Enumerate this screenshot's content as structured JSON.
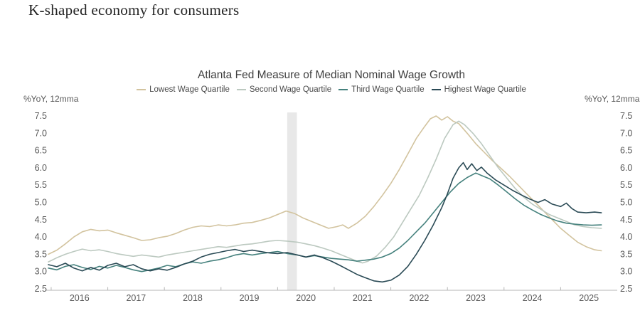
{
  "page": {
    "title": "K-shaped economy for consumers"
  },
  "chart_data": {
    "type": "line",
    "title": "Atlanta Fed Measure of Median Nominal Wage Growth",
    "y_axis_unit": "%YoY, 12mma",
    "xlabel": "",
    "ylabel": "%YoY, 12mma",
    "ylim": [
      2.5,
      7.5
    ],
    "xlim": [
      2015.9,
      2026.0
    ],
    "y_ticks": [
      2.5,
      3.0,
      3.5,
      4.0,
      4.5,
      5.0,
      5.5,
      6.0,
      6.5,
      7.0,
      7.5
    ],
    "x_tick_years": [
      2016,
      2017,
      2018,
      2019,
      2020,
      2021,
      2022,
      2023,
      2024,
      2025
    ],
    "grid": false,
    "legend_position": "top",
    "recession_band": {
      "name": "covid-recession-shading",
      "x_from": 2020.17,
      "x_to": 2020.34,
      "color": "#e8e8e8"
    },
    "axis_color": "#b5b5b5",
    "tick_label_color": "#595959",
    "series": [
      {
        "name": "Lowest Wage Quartile",
        "color": "#d2c39e",
        "points": [
          [
            2015.95,
            3.5
          ],
          [
            2016.1,
            3.62
          ],
          [
            2016.25,
            3.8
          ],
          [
            2016.4,
            4.0
          ],
          [
            2016.55,
            4.15
          ],
          [
            2016.7,
            4.22
          ],
          [
            2016.85,
            4.18
          ],
          [
            2017.0,
            4.2
          ],
          [
            2017.15,
            4.12
          ],
          [
            2017.3,
            4.05
          ],
          [
            2017.45,
            3.98
          ],
          [
            2017.6,
            3.9
          ],
          [
            2017.75,
            3.92
          ],
          [
            2017.9,
            3.98
          ],
          [
            2018.05,
            4.02
          ],
          [
            2018.2,
            4.1
          ],
          [
            2018.35,
            4.2
          ],
          [
            2018.5,
            4.28
          ],
          [
            2018.65,
            4.32
          ],
          [
            2018.8,
            4.3
          ],
          [
            2018.95,
            4.35
          ],
          [
            2019.1,
            4.32
          ],
          [
            2019.25,
            4.35
          ],
          [
            2019.4,
            4.4
          ],
          [
            2019.55,
            4.42
          ],
          [
            2019.7,
            4.48
          ],
          [
            2019.85,
            4.55
          ],
          [
            2020.0,
            4.65
          ],
          [
            2020.15,
            4.75
          ],
          [
            2020.3,
            4.68
          ],
          [
            2020.45,
            4.55
          ],
          [
            2020.6,
            4.45
          ],
          [
            2020.75,
            4.35
          ],
          [
            2020.9,
            4.25
          ],
          [
            2021.05,
            4.3
          ],
          [
            2021.15,
            4.35
          ],
          [
            2021.25,
            4.25
          ],
          [
            2021.4,
            4.4
          ],
          [
            2021.55,
            4.6
          ],
          [
            2021.7,
            4.88
          ],
          [
            2021.85,
            5.2
          ],
          [
            2022.0,
            5.55
          ],
          [
            2022.15,
            5.95
          ],
          [
            2022.3,
            6.4
          ],
          [
            2022.45,
            6.85
          ],
          [
            2022.6,
            7.2
          ],
          [
            2022.7,
            7.42
          ],
          [
            2022.8,
            7.5
          ],
          [
            2022.9,
            7.38
          ],
          [
            2023.0,
            7.48
          ],
          [
            2023.1,
            7.35
          ],
          [
            2023.2,
            7.28
          ],
          [
            2023.35,
            7.0
          ],
          [
            2023.5,
            6.7
          ],
          [
            2023.65,
            6.45
          ],
          [
            2023.8,
            6.2
          ],
          [
            2023.95,
            5.98
          ],
          [
            2024.1,
            5.75
          ],
          [
            2024.25,
            5.5
          ],
          [
            2024.4,
            5.25
          ],
          [
            2024.55,
            5.0
          ],
          [
            2024.7,
            4.75
          ],
          [
            2024.85,
            4.5
          ],
          [
            2025.0,
            4.25
          ],
          [
            2025.15,
            4.05
          ],
          [
            2025.3,
            3.85
          ],
          [
            2025.45,
            3.72
          ],
          [
            2025.6,
            3.63
          ],
          [
            2025.72,
            3.6
          ]
        ]
      },
      {
        "name": "Second Wage Quartile",
        "color": "#bcc9c0",
        "points": [
          [
            2015.95,
            3.28
          ],
          [
            2016.1,
            3.4
          ],
          [
            2016.25,
            3.5
          ],
          [
            2016.4,
            3.58
          ],
          [
            2016.55,
            3.65
          ],
          [
            2016.7,
            3.6
          ],
          [
            2016.85,
            3.63
          ],
          [
            2017.0,
            3.58
          ],
          [
            2017.15,
            3.52
          ],
          [
            2017.3,
            3.48
          ],
          [
            2017.45,
            3.44
          ],
          [
            2017.6,
            3.48
          ],
          [
            2017.75,
            3.45
          ],
          [
            2017.9,
            3.42
          ],
          [
            2018.05,
            3.48
          ],
          [
            2018.2,
            3.52
          ],
          [
            2018.35,
            3.56
          ],
          [
            2018.5,
            3.6
          ],
          [
            2018.65,
            3.64
          ],
          [
            2018.8,
            3.68
          ],
          [
            2018.95,
            3.72
          ],
          [
            2019.1,
            3.7
          ],
          [
            2019.25,
            3.74
          ],
          [
            2019.4,
            3.78
          ],
          [
            2019.55,
            3.8
          ],
          [
            2019.7,
            3.84
          ],
          [
            2019.85,
            3.88
          ],
          [
            2020.0,
            3.9
          ],
          [
            2020.17,
            3.88
          ],
          [
            2020.35,
            3.85
          ],
          [
            2020.5,
            3.8
          ],
          [
            2020.65,
            3.75
          ],
          [
            2020.8,
            3.68
          ],
          [
            2020.95,
            3.6
          ],
          [
            2021.1,
            3.5
          ],
          [
            2021.25,
            3.4
          ],
          [
            2021.4,
            3.3
          ],
          [
            2021.5,
            3.25
          ],
          [
            2021.6,
            3.3
          ],
          [
            2021.75,
            3.45
          ],
          [
            2021.9,
            3.7
          ],
          [
            2022.05,
            4.0
          ],
          [
            2022.2,
            4.4
          ],
          [
            2022.35,
            4.8
          ],
          [
            2022.5,
            5.2
          ],
          [
            2022.65,
            5.7
          ],
          [
            2022.8,
            6.25
          ],
          [
            2022.95,
            6.85
          ],
          [
            2023.1,
            7.25
          ],
          [
            2023.2,
            7.35
          ],
          [
            2023.3,
            7.25
          ],
          [
            2023.45,
            7.0
          ],
          [
            2023.6,
            6.7
          ],
          [
            2023.75,
            6.35
          ],
          [
            2023.9,
            6.0
          ],
          [
            2024.05,
            5.7
          ],
          [
            2024.2,
            5.4
          ],
          [
            2024.35,
            5.15
          ],
          [
            2024.5,
            4.95
          ],
          [
            2024.65,
            4.8
          ],
          [
            2024.8,
            4.65
          ],
          [
            2024.95,
            4.55
          ],
          [
            2025.1,
            4.45
          ],
          [
            2025.25,
            4.35
          ],
          [
            2025.4,
            4.3
          ],
          [
            2025.55,
            4.27
          ],
          [
            2025.72,
            4.25
          ]
        ]
      },
      {
        "name": "Third Wage Quartile",
        "color": "#45817d",
        "points": [
          [
            2015.95,
            3.1
          ],
          [
            2016.1,
            3.05
          ],
          [
            2016.25,
            3.15
          ],
          [
            2016.4,
            3.2
          ],
          [
            2016.55,
            3.12
          ],
          [
            2016.7,
            3.06
          ],
          [
            2016.85,
            3.15
          ],
          [
            2017.0,
            3.1
          ],
          [
            2017.15,
            3.18
          ],
          [
            2017.3,
            3.12
          ],
          [
            2017.45,
            3.05
          ],
          [
            2017.6,
            3.0
          ],
          [
            2017.75,
            3.05
          ],
          [
            2017.9,
            3.1
          ],
          [
            2018.05,
            3.18
          ],
          [
            2018.2,
            3.14
          ],
          [
            2018.35,
            3.22
          ],
          [
            2018.5,
            3.28
          ],
          [
            2018.65,
            3.24
          ],
          [
            2018.8,
            3.3
          ],
          [
            2018.95,
            3.34
          ],
          [
            2019.1,
            3.4
          ],
          [
            2019.25,
            3.48
          ],
          [
            2019.4,
            3.52
          ],
          [
            2019.55,
            3.48
          ],
          [
            2019.7,
            3.52
          ],
          [
            2019.85,
            3.55
          ],
          [
            2020.0,
            3.58
          ],
          [
            2020.17,
            3.52
          ],
          [
            2020.35,
            3.48
          ],
          [
            2020.5,
            3.42
          ],
          [
            2020.65,
            3.46
          ],
          [
            2020.8,
            3.42
          ],
          [
            2020.95,
            3.38
          ],
          [
            2021.1,
            3.36
          ],
          [
            2021.25,
            3.34
          ],
          [
            2021.4,
            3.3
          ],
          [
            2021.55,
            3.33
          ],
          [
            2021.7,
            3.36
          ],
          [
            2021.85,
            3.42
          ],
          [
            2022.0,
            3.52
          ],
          [
            2022.15,
            3.68
          ],
          [
            2022.3,
            3.9
          ],
          [
            2022.45,
            4.15
          ],
          [
            2022.6,
            4.4
          ],
          [
            2022.75,
            4.7
          ],
          [
            2022.9,
            5.0
          ],
          [
            2023.05,
            5.3
          ],
          [
            2023.2,
            5.55
          ],
          [
            2023.35,
            5.72
          ],
          [
            2023.5,
            5.85
          ],
          [
            2023.6,
            5.78
          ],
          [
            2023.75,
            5.68
          ],
          [
            2023.9,
            5.5
          ],
          [
            2024.05,
            5.3
          ],
          [
            2024.2,
            5.1
          ],
          [
            2024.35,
            4.92
          ],
          [
            2024.5,
            4.78
          ],
          [
            2024.65,
            4.65
          ],
          [
            2024.8,
            4.55
          ],
          [
            2024.95,
            4.46
          ],
          [
            2025.1,
            4.4
          ],
          [
            2025.25,
            4.37
          ],
          [
            2025.4,
            4.35
          ],
          [
            2025.55,
            4.34
          ],
          [
            2025.72,
            4.35
          ]
        ]
      },
      {
        "name": "Highest Wage Quartile",
        "color": "#2a4a55",
        "points": [
          [
            2015.95,
            3.2
          ],
          [
            2016.1,
            3.14
          ],
          [
            2016.25,
            3.24
          ],
          [
            2016.4,
            3.1
          ],
          [
            2016.55,
            3.02
          ],
          [
            2016.7,
            3.12
          ],
          [
            2016.85,
            3.04
          ],
          [
            2017.0,
            3.18
          ],
          [
            2017.15,
            3.24
          ],
          [
            2017.3,
            3.14
          ],
          [
            2017.45,
            3.2
          ],
          [
            2017.6,
            3.08
          ],
          [
            2017.75,
            3.02
          ],
          [
            2017.9,
            3.08
          ],
          [
            2018.05,
            3.04
          ],
          [
            2018.2,
            3.12
          ],
          [
            2018.35,
            3.22
          ],
          [
            2018.5,
            3.3
          ],
          [
            2018.65,
            3.42
          ],
          [
            2018.8,
            3.5
          ],
          [
            2018.95,
            3.55
          ],
          [
            2019.1,
            3.6
          ],
          [
            2019.25,
            3.64
          ],
          [
            2019.4,
            3.58
          ],
          [
            2019.55,
            3.62
          ],
          [
            2019.7,
            3.58
          ],
          [
            2019.85,
            3.54
          ],
          [
            2020.0,
            3.52
          ],
          [
            2020.17,
            3.55
          ],
          [
            2020.35,
            3.48
          ],
          [
            2020.5,
            3.42
          ],
          [
            2020.65,
            3.48
          ],
          [
            2020.8,
            3.4
          ],
          [
            2020.95,
            3.3
          ],
          [
            2021.1,
            3.18
          ],
          [
            2021.25,
            3.05
          ],
          [
            2021.4,
            2.92
          ],
          [
            2021.55,
            2.82
          ],
          [
            2021.7,
            2.73
          ],
          [
            2021.85,
            2.7
          ],
          [
            2022.0,
            2.75
          ],
          [
            2022.15,
            2.9
          ],
          [
            2022.3,
            3.15
          ],
          [
            2022.45,
            3.5
          ],
          [
            2022.6,
            3.9
          ],
          [
            2022.75,
            4.35
          ],
          [
            2022.9,
            4.85
          ],
          [
            2023.0,
            5.25
          ],
          [
            2023.1,
            5.7
          ],
          [
            2023.2,
            6.0
          ],
          [
            2023.28,
            6.15
          ],
          [
            2023.35,
            5.95
          ],
          [
            2023.43,
            6.12
          ],
          [
            2023.52,
            5.92
          ],
          [
            2023.6,
            6.02
          ],
          [
            2023.7,
            5.85
          ],
          [
            2023.85,
            5.65
          ],
          [
            2024.0,
            5.5
          ],
          [
            2024.15,
            5.35
          ],
          [
            2024.3,
            5.22
          ],
          [
            2024.45,
            5.1
          ],
          [
            2024.6,
            5.0
          ],
          [
            2024.72,
            5.08
          ],
          [
            2024.85,
            4.95
          ],
          [
            2025.0,
            4.88
          ],
          [
            2025.1,
            4.98
          ],
          [
            2025.2,
            4.82
          ],
          [
            2025.3,
            4.72
          ],
          [
            2025.45,
            4.7
          ],
          [
            2025.6,
            4.72
          ],
          [
            2025.72,
            4.7
          ]
        ]
      }
    ]
  }
}
